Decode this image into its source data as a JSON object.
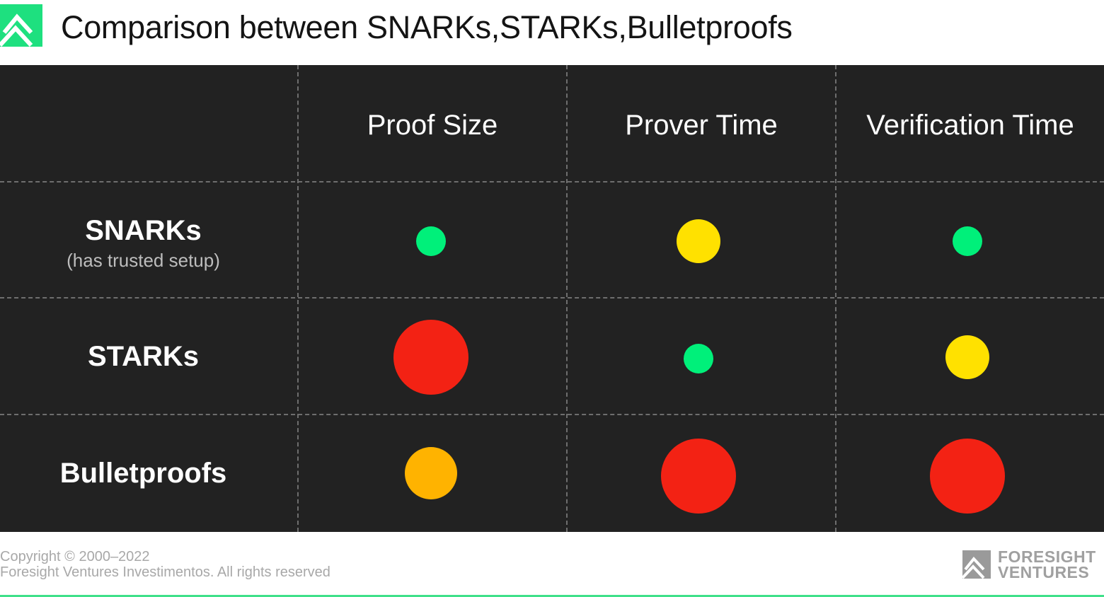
{
  "header": {
    "title": "Comparison between SNARKs,STARKs,Bulletproofs",
    "logo_icon": "mountain-logo-icon",
    "accent_color": "#00e676"
  },
  "table": {
    "columns": [
      "Proof Size",
      "Prover Time",
      "Verification Time"
    ],
    "rows": [
      {
        "label": "SNARKs",
        "sublabel": "(has trusted setup)",
        "ratings": [
          {
            "level": "small",
            "color": "#00f07a"
          },
          {
            "level": "medium",
            "color": "#ffe100"
          },
          {
            "level": "small",
            "color": "#00f07a"
          }
        ]
      },
      {
        "label": "STARKs",
        "sublabel": "",
        "ratings": [
          {
            "level": "large",
            "color": "#f32214"
          },
          {
            "level": "small",
            "color": "#00f07a"
          },
          {
            "level": "medium",
            "color": "#ffe100"
          }
        ]
      },
      {
        "label": "Bulletproofs",
        "sublabel": "",
        "ratings": [
          {
            "level": "medium-large",
            "color": "#ffb300"
          },
          {
            "level": "large",
            "color": "#f32214"
          },
          {
            "level": "large",
            "color": "#f32214"
          }
        ]
      }
    ]
  },
  "footer": {
    "copyright": "Copyright © 2000–2022",
    "rights": "Foresight Ventures Investimentos. All rights reserved",
    "brand_line1": "FORESIGHT",
    "brand_line2": "VENTURES",
    "brand_icon": "foresight-mountain-icon",
    "bottom_line_color": "#3fe08a"
  }
}
